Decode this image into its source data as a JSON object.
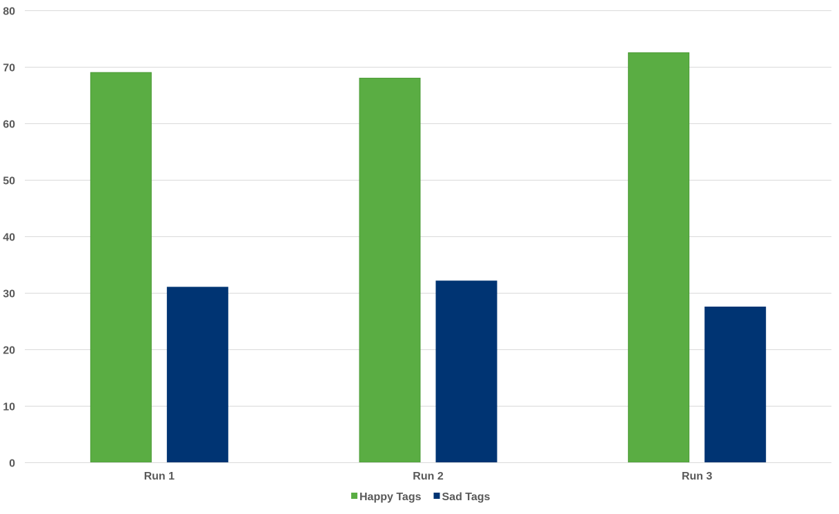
{
  "chart_data": {
    "type": "bar",
    "title": "",
    "xlabel": "",
    "ylabel": "",
    "categories": [
      "Run 1",
      "Run 2",
      "Run 3"
    ],
    "series": [
      {
        "name": "Happy Tags",
        "color": "#5aad43",
        "values": [
          69,
          68,
          72.5
        ]
      },
      {
        "name": "Sad Tags",
        "color": "#003473",
        "values": [
          31,
          32.1,
          27.5
        ]
      }
    ],
    "ylim": [
      0,
      80
    ],
    "yticks": [
      0,
      10,
      20,
      30,
      40,
      50,
      60,
      70,
      80
    ],
    "grid": true,
    "legend_position": "bottom"
  }
}
